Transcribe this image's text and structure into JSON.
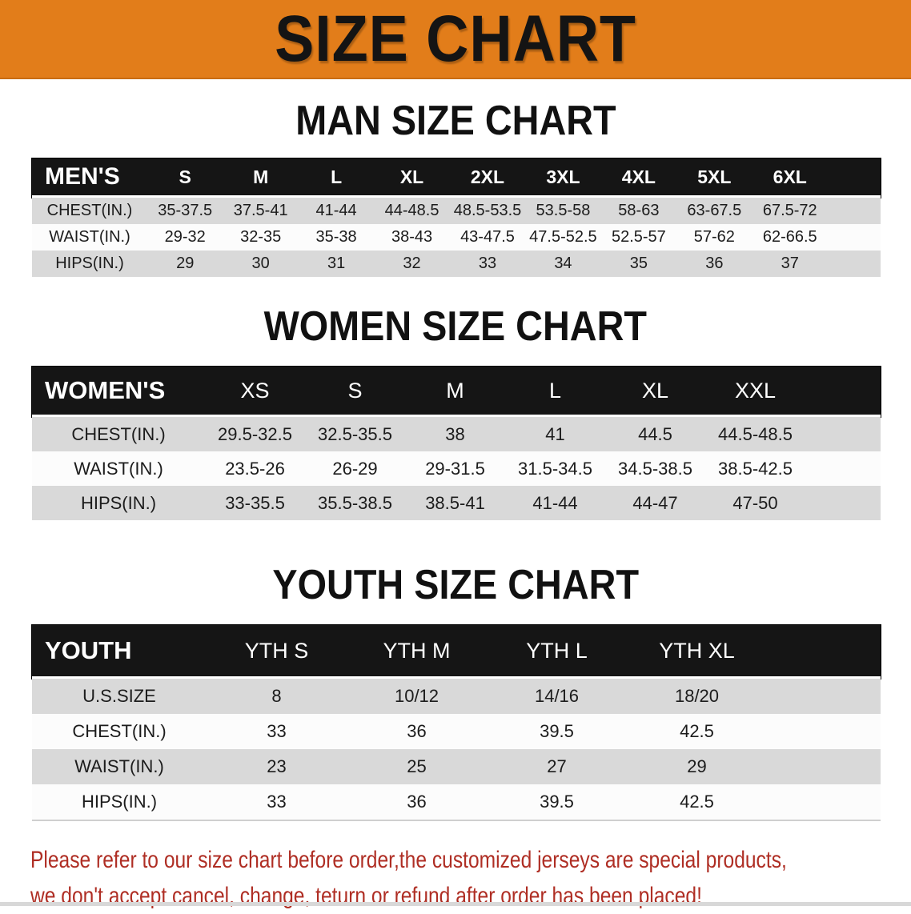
{
  "banner": {
    "title": "SIZE CHART"
  },
  "colors": {
    "accent_orange": "#E27D1A",
    "header_black": "#151515",
    "row_gray": "#D9D9D9",
    "row_white": "#FCFCFC",
    "footer_red": "#AF2E24"
  },
  "men": {
    "heading": "MAN SIZE CHART",
    "group_label": "MEN'S",
    "sizes": [
      "S",
      "M",
      "L",
      "XL",
      "2XL",
      "3XL",
      "4XL",
      "5XL",
      "6XL"
    ],
    "rows": [
      {
        "label": "CHEST(IN.)",
        "values": [
          "35-37.5",
          "37.5-41",
          "41-44",
          "44-48.5",
          "48.5-53.5",
          "53.5-58",
          "58-63",
          "63-67.5",
          "67.5-72"
        ]
      },
      {
        "label": "WAIST(IN.)",
        "values": [
          "29-32",
          "32-35",
          "35-38",
          "38-43",
          "43-47.5",
          "47.5-52.5",
          "52.5-57",
          "57-62",
          "62-66.5"
        ]
      },
      {
        "label": "HIPS(IN.)",
        "values": [
          "29",
          "30",
          "31",
          "32",
          "33",
          "34",
          "35",
          "36",
          "37"
        ]
      }
    ]
  },
  "women": {
    "heading": "WOMEN SIZE CHART",
    "group_label": "WOMEN'S",
    "sizes": [
      "XS",
      "S",
      "M",
      "L",
      "XL",
      "XXL"
    ],
    "rows": [
      {
        "label": "CHEST(IN.)",
        "values": [
          "29.5-32.5",
          "32.5-35.5",
          "38",
          "41",
          "44.5",
          "44.5-48.5"
        ]
      },
      {
        "label": "WAIST(IN.)",
        "values": [
          "23.5-26",
          "26-29",
          "29-31.5",
          "31.5-34.5",
          "34.5-38.5",
          "38.5-42.5"
        ]
      },
      {
        "label": "HIPS(IN.)",
        "values": [
          "33-35.5",
          "35.5-38.5",
          "38.5-41",
          "41-44",
          "44-47",
          "47-50"
        ]
      }
    ]
  },
  "youth": {
    "heading": "YOUTH SIZE CHART",
    "group_label": "YOUTH",
    "sizes": [
      "YTH S",
      "YTH M",
      "YTH L",
      "YTH XL"
    ],
    "rows": [
      {
        "label": "U.S.SIZE",
        "values": [
          "8",
          "10/12",
          "14/16",
          "18/20"
        ]
      },
      {
        "label": "CHEST(IN.)",
        "values": [
          "33",
          "36",
          "39.5",
          "42.5"
        ]
      },
      {
        "label": "WAIST(IN.)",
        "values": [
          "23",
          "25",
          "27",
          "29"
        ]
      },
      {
        "label": "HIPS(IN.)",
        "values": [
          "33",
          "36",
          "39.5",
          "42.5"
        ]
      }
    ]
  },
  "footer": {
    "line1": "Please refer to our size chart before order,the customized jerseys are special products,",
    "line2": "we don't accept cancel, change, teturn or refund after order has been placed!"
  }
}
